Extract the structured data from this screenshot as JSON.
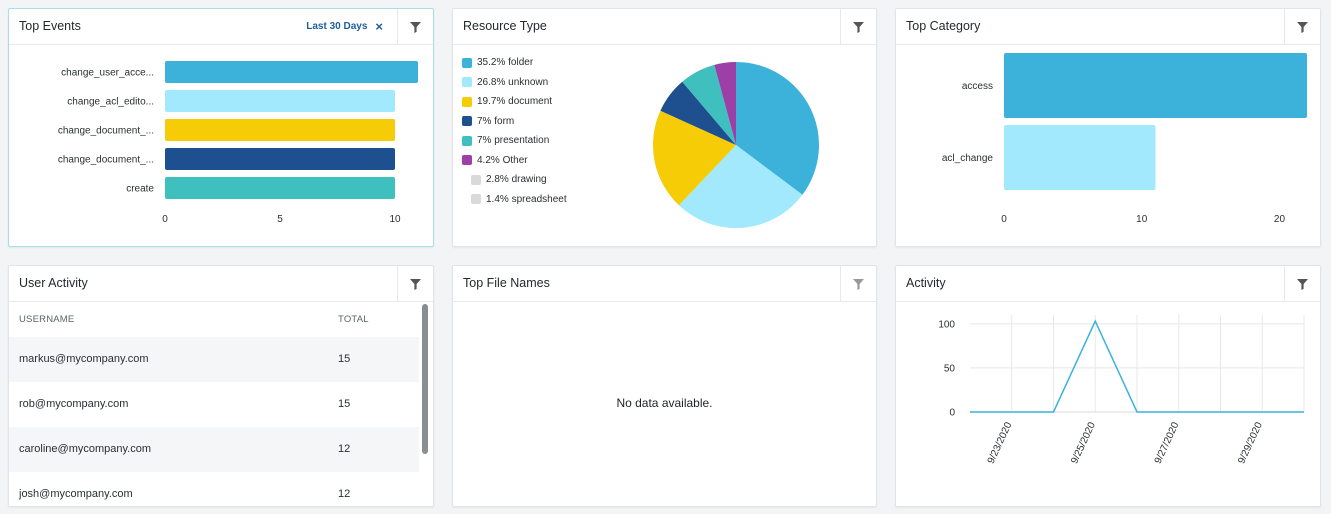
{
  "top_events": {
    "title": "Top Events",
    "date_filter": "Last 30 Days",
    "close_icon": "×",
    "filter_icon": "filter-icon",
    "chart_data": {
      "type": "bar",
      "orientation": "horizontal",
      "categories": [
        "change_user_acce...",
        "change_acl_edito...",
        "change_document_...",
        "change_document_...",
        "create"
      ],
      "values": [
        11,
        10,
        10,
        10,
        10
      ],
      "colors": [
        "#3cb1da",
        "#a3e9fd",
        "#f6cc07",
        "#1e4f8f",
        "#40bfbf"
      ],
      "xticks": [
        0,
        5,
        10
      ],
      "xlim": [
        0,
        11
      ]
    }
  },
  "resource_type": {
    "title": "Resource Type",
    "filter_icon": "filter-icon",
    "chart_data": {
      "type": "pie",
      "slices": [
        {
          "label": "35.2% folder",
          "value": 35.2,
          "color": "#3cb1da"
        },
        {
          "label": "26.8% unknown",
          "value": 26.8,
          "color": "#a3e9fd"
        },
        {
          "label": "19.7% document",
          "value": 19.7,
          "color": "#f6cc07"
        },
        {
          "label": "7% form",
          "value": 7,
          "color": "#1e4f8f"
        },
        {
          "label": "7% presentation",
          "value": 7,
          "color": "#40bfbf"
        },
        {
          "label": "4.2% Other",
          "value": 4.2,
          "color": "#9c3fa6"
        }
      ],
      "other_breakdown": [
        {
          "label": "2.8% drawing",
          "color": "#d9d9d9"
        },
        {
          "label": "1.4% spreadsheet",
          "color": "#d9d9d9"
        }
      ]
    }
  },
  "top_category": {
    "title": "Top Category",
    "filter_icon": "filter-icon",
    "chart_data": {
      "type": "bar",
      "orientation": "horizontal",
      "categories": [
        "access",
        "acl_change"
      ],
      "values": [
        22,
        11
      ],
      "colors": [
        "#3cb1da",
        "#a3e9fd"
      ],
      "xticks": [
        0,
        10,
        20
      ],
      "xlim": [
        0,
        22
      ]
    }
  },
  "user_activity": {
    "title": "User Activity",
    "filter_icon": "filter-icon",
    "columns": {
      "username": "USERNAME",
      "total": "TOTAL"
    },
    "rows": [
      {
        "username": "markus@mycompany.com",
        "total": "15"
      },
      {
        "username": "rob@mycompany.com",
        "total": "15"
      },
      {
        "username": "caroline@mycompany.com",
        "total": "12"
      },
      {
        "username": "josh@mycompany.com",
        "total": "12"
      }
    ]
  },
  "top_file_names": {
    "title": "Top File Names",
    "filter_icon": "filter-icon",
    "empty_message": "No data available."
  },
  "activity": {
    "title": "Activity",
    "filter_icon": "filter-icon",
    "chart_data": {
      "type": "line",
      "x": [
        "9/22/2020",
        "9/23/2020",
        "9/24/2020",
        "9/25/2020",
        "9/26/2020",
        "9/27/2020",
        "9/28/2020",
        "9/29/2020",
        "9/30/2020"
      ],
      "y": [
        0,
        0,
        0,
        103,
        0,
        0,
        0,
        0,
        0
      ],
      "xtick_labels": [
        "9/23/2020",
        "9/25/2020",
        "9/27/2020",
        "9/29/2020"
      ],
      "yticks": [
        0,
        50,
        100
      ],
      "ylim": [
        0,
        110
      ],
      "color": "#3cb1da",
      "grid": true
    }
  }
}
